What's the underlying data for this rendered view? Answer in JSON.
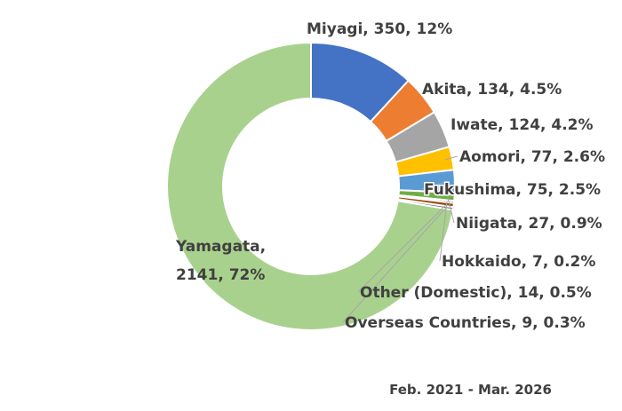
{
  "chart_data": {
    "type": "pie",
    "style": "donut",
    "title": "",
    "subtitle": "Feb. 2021 - Mar. 2026",
    "slices": [
      {
        "label": "Miyagi",
        "value": 350,
        "percent": "12%",
        "color": "#4472C4"
      },
      {
        "label": "Akita",
        "value": 134,
        "percent": "4.5%",
        "color": "#ED7D31"
      },
      {
        "label": "Iwate",
        "value": 124,
        "percent": "4.2%",
        "color": "#A5A5A5"
      },
      {
        "label": "Aomori",
        "value": 77,
        "percent": "2.6%",
        "color": "#FFC000"
      },
      {
        "label": "Fukushima",
        "value": 75,
        "percent": "2.5%",
        "color": "#5B9BD5"
      },
      {
        "label": "Niigata",
        "value": 27,
        "percent": "0.9%",
        "color": "#70AD47"
      },
      {
        "label": "Hokkaido",
        "value": 7,
        "percent": "0.2%",
        "color": "#264478"
      },
      {
        "label": "Other (Domestic)",
        "value": 14,
        "percent": "0.5%",
        "color": "#9E480E"
      },
      {
        "label": "Overseas Countries",
        "value": 9,
        "percent": "0.3%",
        "color": "#636363"
      },
      {
        "label": "Yamagata",
        "value": 2141,
        "percent": "72%",
        "color": "#A9D18E"
      }
    ],
    "legend": "none",
    "data_labels": "outside with leader lines"
  }
}
